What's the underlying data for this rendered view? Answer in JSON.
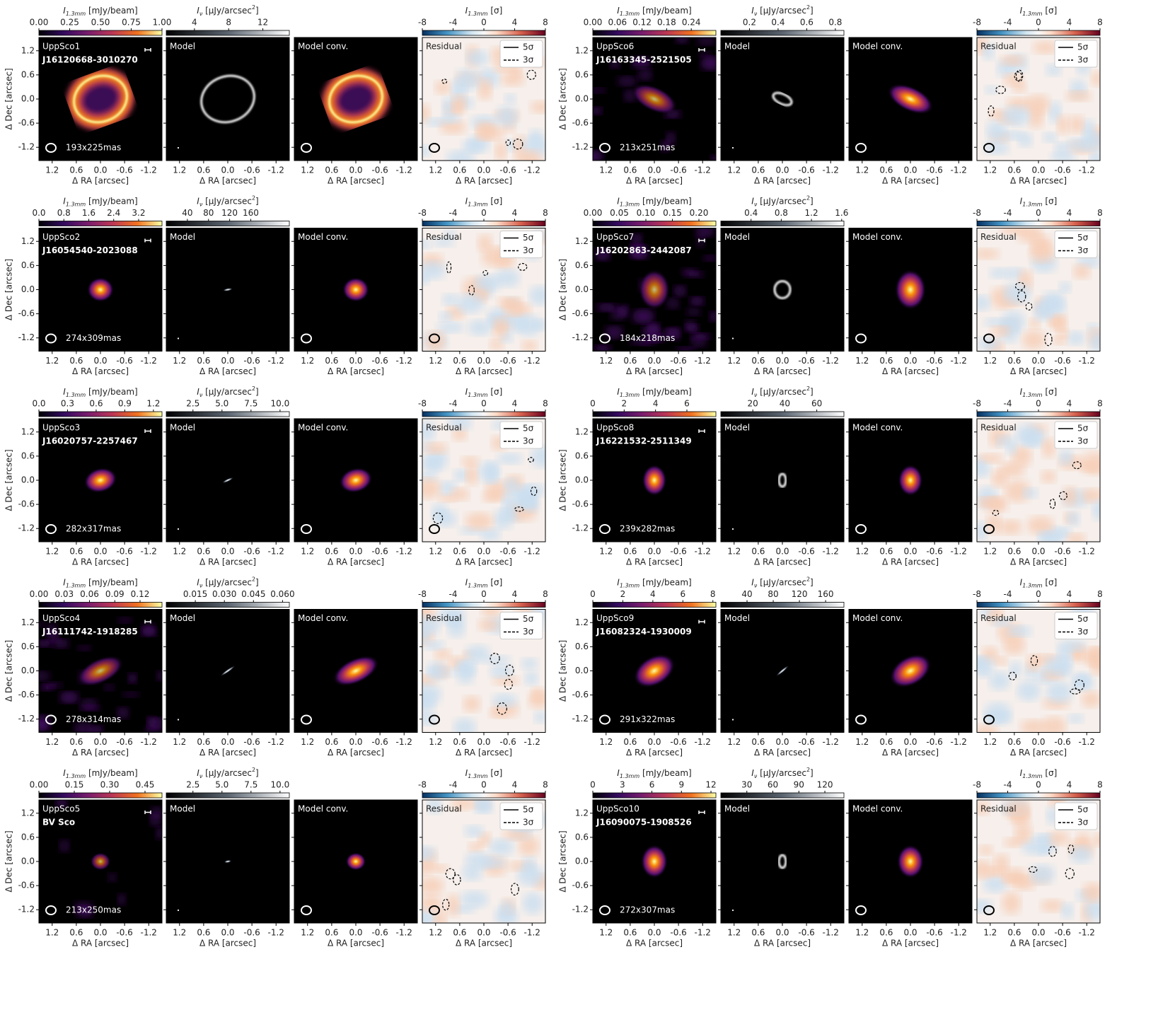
{
  "figure": {
    "panel_titles": {
      "model": "Model",
      "conv": "Model conv.",
      "residual": "Residual"
    },
    "axes": {
      "xlabel": "Δ RA [arcsec]",
      "ylabel": "Δ Dec [arcsec]",
      "xlim": [
        1.53,
        -1.53
      ],
      "ylim": [
        -1.53,
        1.53
      ],
      "ticks": [
        1.2,
        0.6,
        {
          "value": 0,
          "label": "0.0"
        },
        -0.6,
        -1.2
      ]
    },
    "data_cbar_label": {
      "symbol": "I",
      "sub": "1.3mm",
      "unit": " [mJy/beam]"
    },
    "model_cbar_label": {
      "symbol": "I",
      "sub": "ν",
      "unit": " [μJy/arcsec",
      "sup": "2",
      "close": "]"
    },
    "residual_cbar": {
      "label": {
        "symbol": "I",
        "sub": "1.3mm",
        "unit": " [σ]"
      },
      "lim": [
        -8,
        8
      ],
      "ticks": [
        -8,
        -4,
        0,
        4,
        8
      ]
    },
    "legend": [
      "5σ",
      "3σ"
    ],
    "sources": [
      {
        "name": "UppSco1",
        "id": "J16120668-3010270",
        "beam": "193x225mas",
        "data_cbar": {
          "lim": [
            0,
            1.0
          ],
          "ticks": [
            {
              "value": 0,
              "label": "0.00"
            },
            0.25,
            {
              "value": 0.5,
              "label": "0.50"
            },
            0.75,
            {
              "value": 1,
              "label": "1.00"
            }
          ]
        },
        "model_cbar": {
          "lim": [
            0.7,
            15.1
          ],
          "ticks": [
            4,
            8,
            12
          ]
        }
      },
      {
        "name": "UppSco2",
        "id": "J16054540-2023088",
        "beam": "274x309mas",
        "data_cbar": {
          "lim": [
            0,
            3.95
          ],
          "ticks": [
            {
              "value": 0,
              "label": "0.0"
            },
            0.8,
            1.6,
            2.4,
            3.2
          ]
        },
        "model_cbar": {
          "lim": [
            0,
            233
          ],
          "ticks": [
            40,
            80,
            120,
            160
          ]
        }
      },
      {
        "name": "UppSco3",
        "id": "J16020757-2257467",
        "beam": "282x317mas",
        "data_cbar": {
          "lim": [
            0,
            1.29
          ],
          "ticks": [
            {
              "value": 0,
              "label": "0.0"
            },
            0.3,
            0.6,
            0.9,
            1.2
          ]
        },
        "model_cbar": {
          "lim": [
            0.2,
            10.8
          ],
          "ticks": [
            2.5,
            {
              "value": 5,
              "label": "5.0"
            },
            7.5,
            {
              "value": 10,
              "label": "10.0"
            }
          ]
        }
      },
      {
        "name": "UppSco4",
        "id": "J16111742-1918285",
        "beam": "278x314mas",
        "data_cbar": {
          "lim": [
            0,
            0.146
          ],
          "ticks": [
            {
              "value": 0,
              "label": "0.00"
            },
            0.03,
            0.06,
            0.09,
            0.12
          ]
        },
        "model_cbar": {
          "lim": [
            0,
            0.0635
          ],
          "ticks": [
            0.015,
            {
              "value": 0.03,
              "label": "0.030"
            },
            0.045,
            {
              "value": 0.06,
              "label": "0.060"
            }
          ]
        }
      },
      {
        "name": "UppSco5",
        "id": "BV Sco",
        "beam": "213x250mas",
        "data_cbar": {
          "lim": [
            0,
            0.522
          ],
          "ticks": [
            {
              "value": 0,
              "label": "0.00"
            },
            0.15,
            {
              "value": 0.3,
              "label": "0.30"
            },
            0.45
          ]
        },
        "model_cbar": {
          "lim": [
            0.2,
            10.8
          ],
          "ticks": [
            2.5,
            {
              "value": 5,
              "label": "5.0"
            },
            7.5,
            {
              "value": 10,
              "label": "10.0"
            }
          ]
        }
      },
      {
        "name": "UppSco6",
        "id": "J16163345-2521505",
        "beam": "213x251mas",
        "data_cbar": {
          "lim": [
            0,
            0.3
          ],
          "ticks": [
            {
              "value": 0,
              "label": "0.00"
            },
            0.06,
            0.12,
            0.18,
            0.24
          ]
        },
        "model_cbar": {
          "lim": [
            0,
            0.86
          ],
          "ticks": [
            0.2,
            0.4,
            0.6,
            0.8
          ]
        }
      },
      {
        "name": "UppSco7",
        "id": "J16202863-2442087",
        "beam": "184x218mas",
        "data_cbar": {
          "lim": [
            0,
            0.232
          ],
          "ticks": [
            {
              "value": 0,
              "label": "0.00"
            },
            0.05,
            {
              "value": 0.1,
              "label": "0.10"
            },
            0.15,
            {
              "value": 0.2,
              "label": "0.20"
            }
          ]
        },
        "model_cbar": {
          "lim": [
            0,
            1.63
          ],
          "ticks": [
            0.4,
            0.8,
            1.2,
            1.6
          ]
        }
      },
      {
        "name": "UppSco8",
        "id": "J16221532-2511349",
        "beam": "239x282mas",
        "data_cbar": {
          "lim": [
            0,
            7.85
          ],
          "ticks": [
            0,
            2,
            4,
            6
          ]
        },
        "model_cbar": {
          "lim": [
            0,
            77
          ],
          "ticks": [
            20,
            40,
            60
          ]
        }
      },
      {
        "name": "UppSco9",
        "id": "J16082324-1930009",
        "beam": "291x322mas",
        "data_cbar": {
          "lim": [
            0,
            8.2
          ],
          "ticks": [
            0,
            2,
            4,
            6,
            8
          ]
        },
        "model_cbar": {
          "lim": [
            0,
            188
          ],
          "ticks": [
            40,
            80,
            120,
            160
          ]
        }
      },
      {
        "name": "UppSco10",
        "id": "J16090075-1908526",
        "beam": "272x307mas",
        "data_cbar": {
          "lim": [
            0,
            12.5
          ],
          "ticks": [
            0,
            3,
            6,
            9,
            12
          ]
        },
        "model_cbar": {
          "lim": [
            0,
            142
          ],
          "ticks": [
            30,
            60,
            90,
            120
          ]
        }
      }
    ]
  }
}
